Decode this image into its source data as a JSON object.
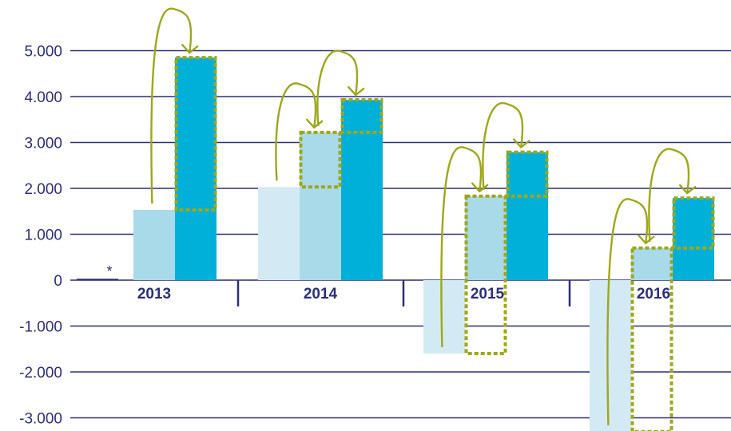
{
  "chart_data": {
    "type": "bar",
    "categories": [
      "2013",
      "2014",
      "2015",
      "2016"
    ],
    "y_ticks": [
      "5.000",
      "4.000",
      "3.000",
      "2.000",
      "1.000",
      "0",
      "-1.000",
      "-2.000",
      "-3.000"
    ],
    "ylim": [
      -3300,
      5600
    ],
    "series": [
      {
        "values": [
          0,
          2030,
          -1600,
          -3300
        ]
      },
      {
        "values": [
          1530,
          3220,
          1830,
          700
        ]
      },
      {
        "values": [
          4850,
          3930,
          2790,
          1790
        ]
      }
    ],
    "annotations": [
      {
        "category": "2013",
        "footnote_marker": "*"
      }
    ],
    "increment_boxes": [
      {
        "category": "2013",
        "series": 3,
        "from": 1530,
        "to": 4850
      },
      {
        "category": "2014",
        "series": 2,
        "from": 2030,
        "to": 3220
      },
      {
        "category": "2014",
        "series": 3,
        "from": 3220,
        "to": 3930
      },
      {
        "category": "2015",
        "series": 2,
        "from": -1600,
        "to": 1830
      },
      {
        "category": "2015",
        "series": 3,
        "from": 1830,
        "to": 2790
      },
      {
        "category": "2016",
        "series": 2,
        "from": -3300,
        "to": 700
      },
      {
        "category": "2016",
        "series": 3,
        "from": 700,
        "to": 1790
      }
    ],
    "grid": true,
    "legend": "none",
    "colors": {
      "series_1": "#d3eaf5",
      "series_2": "#a9dae9",
      "series_3": "#00b0d8",
      "dotted_box": "#9ea719",
      "arrow": "#9ea719",
      "gridline": "#2b2e7a",
      "text": "#2b2e7a"
    }
  }
}
